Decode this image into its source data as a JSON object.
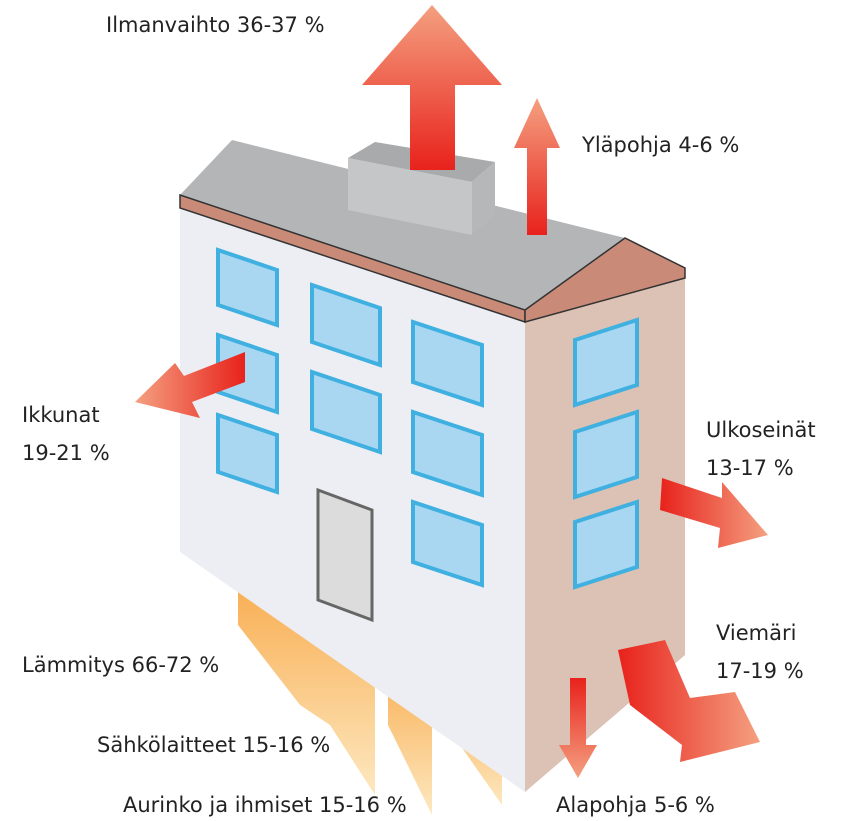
{
  "diagram": {
    "labels": [
      {
        "name": "Ilmanvaihto",
        "value": "36-37 %"
      },
      {
        "name": "Yläpohja",
        "value": "4-6 %"
      },
      {
        "name": "Ikkunat",
        "value": "19-21 %"
      },
      {
        "name": "Ulkoseinät",
        "value": "13-17 %"
      },
      {
        "name": "Viemäri",
        "value": "17-19 %"
      },
      {
        "name": "Lämmitys",
        "value": "66-72 %"
      },
      {
        "name": "Sähkölaitteet",
        "value": "15-16 %"
      },
      {
        "name": "Aurinko ja ihmiset",
        "value": "15-16 %"
      },
      {
        "name": "Alapohja",
        "value": "5-6 %"
      }
    ]
  }
}
